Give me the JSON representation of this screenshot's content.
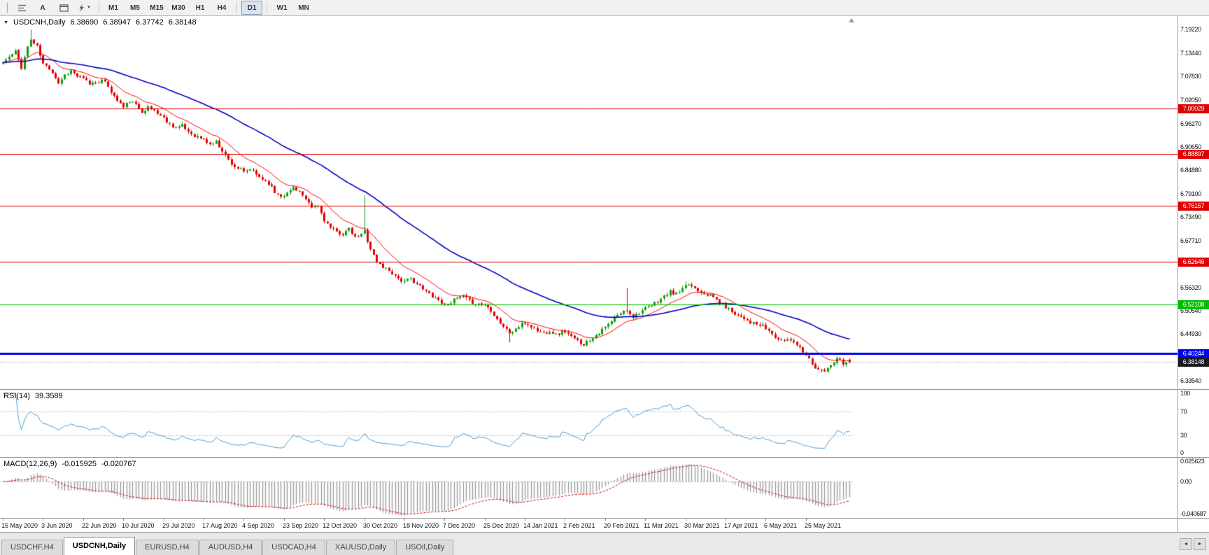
{
  "toolbar": {
    "a_button_label": "A",
    "timeframes": [
      "M1",
      "M5",
      "M15",
      "M30",
      "H1",
      "H4",
      "D1",
      "W1",
      "MN"
    ],
    "active_timeframe": "D1"
  },
  "icons": {
    "one_click_glyph": "▼",
    "tab_scroll_left_glyph": "◄",
    "tab_scroll_right_glyph": "►"
  },
  "chart": {
    "title": "USDCNH,Daily",
    "ohlc": {
      "open": "6.38690",
      "high": "6.38947",
      "low": "6.37742",
      "close": "6.38148"
    },
    "scale": {
      "top": 7.225,
      "bottom": 6.315
    },
    "y_ticks": [
      "7.19220",
      "7.13440",
      "7.07830",
      "7.02050",
      "6.96270",
      "6.90650",
      "6.84880",
      "6.79100",
      "6.73490",
      "6.67710",
      "6.61930",
      "6.56320",
      "6.50540",
      "6.44930",
      "6.39150",
      "6.33540"
    ],
    "levels": [
      {
        "label": "7.00029",
        "price": 7.00029,
        "color": "#E00000",
        "width": 1
      },
      {
        "label": "6.88897",
        "price": 6.88897,
        "color": "#E00000",
        "width": 1
      },
      {
        "label": "6.76157",
        "price": 6.76157,
        "color": "#E00000",
        "width": 1
      },
      {
        "label": "6.62646",
        "price": 6.62646,
        "color": "#E00000",
        "width": 1
      },
      {
        "label": "6.52108",
        "price": 6.52108,
        "color": "#00BE00",
        "width": 1
      },
      {
        "label": "6.40244",
        "price": 6.40244,
        "color": "#0000F0",
        "width": 3
      }
    ],
    "current_price": {
      "label": "6.38148",
      "value": 6.38148,
      "badge_color": "#1a1a1a"
    },
    "colors": {
      "up": "#0FA00F",
      "down": "#E30000",
      "ma_fast": "#FF0000",
      "ma_slow": "#0000C8"
    }
  },
  "rsi": {
    "label": "RSI(14)",
    "value": "39.3589",
    "ticks": [
      "100",
      "70",
      "30",
      "0"
    ],
    "levels": [
      70,
      30
    ],
    "color": "#4E9CD2"
  },
  "macd": {
    "label": "MACD(12,26,9)",
    "main_value": "-0.015925",
    "signal_value": "-0.020767",
    "ticks": [
      "0.025623",
      "0.00",
      "-0.040687"
    ],
    "scale": {
      "top": 0.025623,
      "bottom": -0.040687
    },
    "histogram_color": "#999999",
    "signal_color": "#D40000"
  },
  "x_axis": {
    "label_every_bars": 13,
    "labels": [
      "15 May 2020",
      "3 Jun 2020",
      "22 Jun 2020",
      "10 Jul 2020",
      "29 Jul 2020",
      "17 Aug 2020",
      "4 Sep 2020",
      "23 Sep 2020",
      "12 Oct 2020",
      "30 Oct 2020",
      "18 Nov 2020",
      "7 Dec 2020",
      "25 Dec 2020",
      "14 Jan 2021",
      "2 Feb 2021",
      "20 Feb 2021",
      "11 Mar 2021",
      "30 Mar 2021",
      "17 Apr 2021",
      "6 May 2021",
      "25 May 2021"
    ]
  },
  "tabs": {
    "items": [
      "USDCHF,H4",
      "USDCNH,Daily",
      "EURUSD,H4",
      "AUDUSD,H4",
      "USDCAD,H4",
      "XAUUSD,Daily",
      "USOil,Daily"
    ],
    "active": "USDCNH,Daily"
  },
  "chart_data": {
    "type": "candlestick",
    "symbol": "USDCNH",
    "timeframe": "Daily",
    "bars": 275,
    "seed": 11,
    "noise": 0.0045,
    "wick": 0.006,
    "ma_fast_period": 13,
    "ma_slow_period": 55,
    "rsi_period": 14,
    "macd_periods": [
      12,
      26,
      9
    ],
    "key_levels": [
      7.00029,
      6.88897,
      6.76157,
      6.62646,
      6.52108,
      6.40244
    ],
    "last_ohlc": [
      6.3869,
      6.38947,
      6.37742,
      6.38148
    ],
    "price_anchors": [
      [
        0,
        7.112
      ],
      [
        2,
        7.125
      ],
      [
        4,
        7.138
      ],
      [
        6,
        7.1
      ],
      [
        8,
        7.15
      ],
      [
        9,
        7.168
      ],
      [
        10,
        7.158
      ],
      [
        11,
        7.15
      ],
      [
        13,
        7.108
      ],
      [
        15,
        7.098
      ],
      [
        16,
        7.088
      ],
      [
        18,
        7.062
      ],
      [
        20,
        7.082
      ],
      [
        22,
        7.092
      ],
      [
        24,
        7.078
      ],
      [
        26,
        7.072
      ],
      [
        28,
        7.06
      ],
      [
        30,
        7.064
      ],
      [
        32,
        7.068
      ],
      [
        34,
        7.055
      ],
      [
        36,
        7.028
      ],
      [
        38,
        7.012
      ],
      [
        39,
        7.002
      ],
      [
        41,
        7.018
      ],
      [
        43,
        7.008
      ],
      [
        45,
        6.993
      ],
      [
        47,
        7.002
      ],
      [
        49,
        6.995
      ],
      [
        52,
        6.976
      ],
      [
        54,
        6.962
      ],
      [
        56,
        6.953
      ],
      [
        58,
        6.957
      ],
      [
        60,
        6.944
      ],
      [
        62,
        6.934
      ],
      [
        65,
        6.923
      ],
      [
        67,
        6.912
      ],
      [
        69,
        6.918
      ],
      [
        71,
        6.898
      ],
      [
        73,
        6.874
      ],
      [
        75,
        6.858
      ],
      [
        77,
        6.85
      ],
      [
        78,
        6.843
      ],
      [
        80,
        6.852
      ],
      [
        82,
        6.838
      ],
      [
        84,
        6.828
      ],
      [
        86,
        6.818
      ],
      [
        88,
        6.795
      ],
      [
        90,
        6.788
      ],
      [
        92,
        6.792
      ],
      [
        94,
        6.808
      ],
      [
        96,
        6.798
      ],
      [
        98,
        6.775
      ],
      [
        100,
        6.757
      ],
      [
        102,
        6.762
      ],
      [
        104,
        6.728
      ],
      [
        106,
        6.708
      ],
      [
        108,
        6.698
      ],
      [
        110,
        6.694
      ],
      [
        112,
        6.705
      ],
      [
        114,
        6.684
      ],
      [
        116,
        6.692
      ],
      [
        117,
        6.702
      ],
      [
        118,
        6.678
      ],
      [
        119,
        6.658
      ],
      [
        121,
        6.625
      ],
      [
        123,
        6.613
      ],
      [
        125,
        6.605
      ],
      [
        127,
        6.592
      ],
      [
        129,
        6.58
      ],
      [
        130,
        6.576
      ],
      [
        132,
        6.584
      ],
      [
        134,
        6.572
      ],
      [
        136,
        6.558
      ],
      [
        138,
        6.548
      ],
      [
        140,
        6.538
      ],
      [
        143,
        6.521
      ],
      [
        145,
        6.528
      ],
      [
        147,
        6.536
      ],
      [
        149,
        6.541
      ],
      [
        151,
        6.53
      ],
      [
        153,
        6.524
      ],
      [
        156,
        6.521
      ],
      [
        158,
        6.508
      ],
      [
        160,
        6.486
      ],
      [
        162,
        6.468
      ],
      [
        164,
        6.452
      ],
      [
        166,
        6.462
      ],
      [
        168,
        6.472
      ],
      [
        169,
        6.476
      ],
      [
        171,
        6.468
      ],
      [
        173,
        6.458
      ],
      [
        175,
        6.452
      ],
      [
        177,
        6.458
      ],
      [
        179,
        6.448
      ],
      [
        182,
        6.456
      ],
      [
        184,
        6.442
      ],
      [
        186,
        6.432
      ],
      [
        188,
        6.425
      ],
      [
        190,
        6.436
      ],
      [
        192,
        6.448
      ],
      [
        194,
        6.459
      ],
      [
        196,
        6.472
      ],
      [
        198,
        6.488
      ],
      [
        200,
        6.5
      ],
      [
        202,
        6.508
      ],
      [
        204,
        6.492
      ],
      [
        206,
        6.503
      ],
      [
        208,
        6.511
      ],
      [
        210,
        6.519
      ],
      [
        212,
        6.53
      ],
      [
        214,
        6.541
      ],
      [
        216,
        6.552
      ],
      [
        218,
        6.547
      ],
      [
        220,
        6.558
      ],
      [
        222,
        6.571
      ],
      [
        224,
        6.562
      ],
      [
        226,
        6.553
      ],
      [
        228,
        6.547
      ],
      [
        230,
        6.539
      ],
      [
        232,
        6.527
      ],
      [
        234,
        6.516
      ],
      [
        236,
        6.505
      ],
      [
        238,
        6.496
      ],
      [
        240,
        6.489
      ],
      [
        242,
        6.478
      ],
      [
        244,
        6.472
      ],
      [
        246,
        6.468
      ],
      [
        248,
        6.457
      ],
      [
        250,
        6.442
      ],
      [
        252,
        6.431
      ],
      [
        254,
        6.437
      ],
      [
        256,
        6.433
      ],
      [
        258,
        6.417
      ],
      [
        260,
        6.401
      ],
      [
        261,
        6.388
      ],
      [
        263,
        6.368
      ],
      [
        265,
        6.359
      ],
      [
        266,
        6.357
      ],
      [
        267,
        6.366
      ],
      [
        268,
        6.372
      ],
      [
        269,
        6.381
      ],
      [
        270,
        6.388
      ],
      [
        271,
        6.384
      ],
      [
        272,
        6.377
      ],
      [
        273,
        6.379
      ],
      [
        274,
        6.38148
      ]
    ],
    "spikes": [
      {
        "bar": 9,
        "high": 7.1922
      },
      {
        "bar": 117,
        "high": 6.787
      },
      {
        "bar": 164,
        "low": 6.429
      },
      {
        "bar": 189,
        "low": 6.4185
      },
      {
        "bar": 202,
        "high": 6.562
      },
      {
        "bar": 221,
        "high": 6.578
      },
      {
        "bar": 265,
        "low": 6.3554
      }
    ]
  }
}
